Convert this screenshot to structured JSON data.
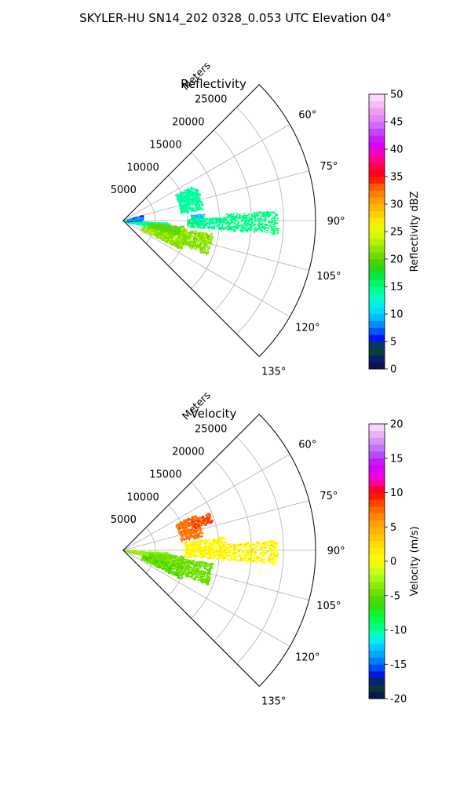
{
  "figure": {
    "suptitle": "SKYLER-HU  SN14_202  0328_0.053 UTC Elevation 04°"
  },
  "chart_data": [
    {
      "type": "polar-sector",
      "title": "Reflectivity",
      "radial_label": "Meters",
      "theta_min_deg": 45,
      "theta_max_deg": 135,
      "r_max": 30000,
      "radial_ticks": [
        5000,
        10000,
        15000,
        20000,
        25000
      ],
      "theta_ticks": [
        {
          "deg": 60,
          "label": "60°"
        },
        {
          "deg": 75,
          "label": "75°"
        },
        {
          "deg": 90,
          "label": "90°"
        },
        {
          "deg": 105,
          "label": "105°"
        },
        {
          "deg": 120,
          "label": "120°"
        },
        {
          "deg": 135,
          "label": "135°"
        }
      ],
      "grid": true,
      "colorbar": {
        "label": "Reflectivity dBZ",
        "min": 0,
        "max": 50,
        "ticks": [
          0,
          5,
          10,
          15,
          20,
          25,
          30,
          35,
          40,
          45,
          50
        ]
      },
      "echo_regions": [
        {
          "theta": [
            63,
            82
          ],
          "r": [
            9000,
            12500
          ],
          "value": 14
        },
        {
          "theta": [
            85,
            90
          ],
          "r": [
            10500,
            12500
          ],
          "value": 9
        },
        {
          "theta": [
            88,
            95
          ],
          "r": [
            10000,
            16000
          ],
          "value": 14
        },
        {
          "theta": [
            86,
            95
          ],
          "r": [
            16000,
            24000
          ],
          "value": 15
        },
        {
          "theta": [
            92,
            103
          ],
          "r": [
            0,
            7000
          ],
          "value": 13
        },
        {
          "theta": [
            95,
            105
          ],
          "r": [
            4000,
            9500
          ],
          "value": 20
        },
        {
          "theta": [
            105,
            116
          ],
          "r": [
            3000,
            10000
          ],
          "value": 21
        },
        {
          "theta": [
            98,
            112
          ],
          "r": [
            9000,
            14000
          ],
          "value": 21
        },
        {
          "theta": [
            72,
            88
          ],
          "r": [
            500,
            3000
          ],
          "value": 6
        }
      ]
    },
    {
      "type": "polar-sector",
      "title": "Velocity",
      "radial_label": "Meters",
      "theta_min_deg": 45,
      "theta_max_deg": 135,
      "r_max": 30000,
      "radial_ticks": [
        5000,
        10000,
        15000,
        20000,
        25000
      ],
      "theta_ticks": [
        {
          "deg": 60,
          "label": "60°"
        },
        {
          "deg": 75,
          "label": "75°"
        },
        {
          "deg": 90,
          "label": "90°"
        },
        {
          "deg": 105,
          "label": "105°"
        },
        {
          "deg": 120,
          "label": "120°"
        },
        {
          "deg": 135,
          "label": "135°"
        }
      ],
      "grid": true,
      "colorbar": {
        "label": "Velocity (m/s)",
        "min": -20,
        "max": 20,
        "ticks": [
          -20,
          -15,
          -10,
          -5,
          0,
          5,
          10,
          15,
          20
        ]
      },
      "echo_regions": [
        {
          "theta": [
            63,
            80
          ],
          "r": [
            9000,
            12500
          ],
          "value": 7
        },
        {
          "theta": [
            66,
            72
          ],
          "r": [
            11500,
            14500
          ],
          "value": 9
        },
        {
          "theta": [
            82,
            95
          ],
          "r": [
            9500,
            16000
          ],
          "value": 1
        },
        {
          "theta": [
            86,
            95
          ],
          "r": [
            16000,
            24000
          ],
          "value": 0
        },
        {
          "theta": [
            92,
            103
          ],
          "r": [
            0,
            7000
          ],
          "value": -3
        },
        {
          "theta": [
            95,
            105
          ],
          "r": [
            4000,
            9500
          ],
          "value": -4
        },
        {
          "theta": [
            105,
            116
          ],
          "r": [
            3000,
            10000
          ],
          "value": -6
        },
        {
          "theta": [
            98,
            112
          ],
          "r": [
            9000,
            14000
          ],
          "value": -5
        }
      ]
    }
  ]
}
